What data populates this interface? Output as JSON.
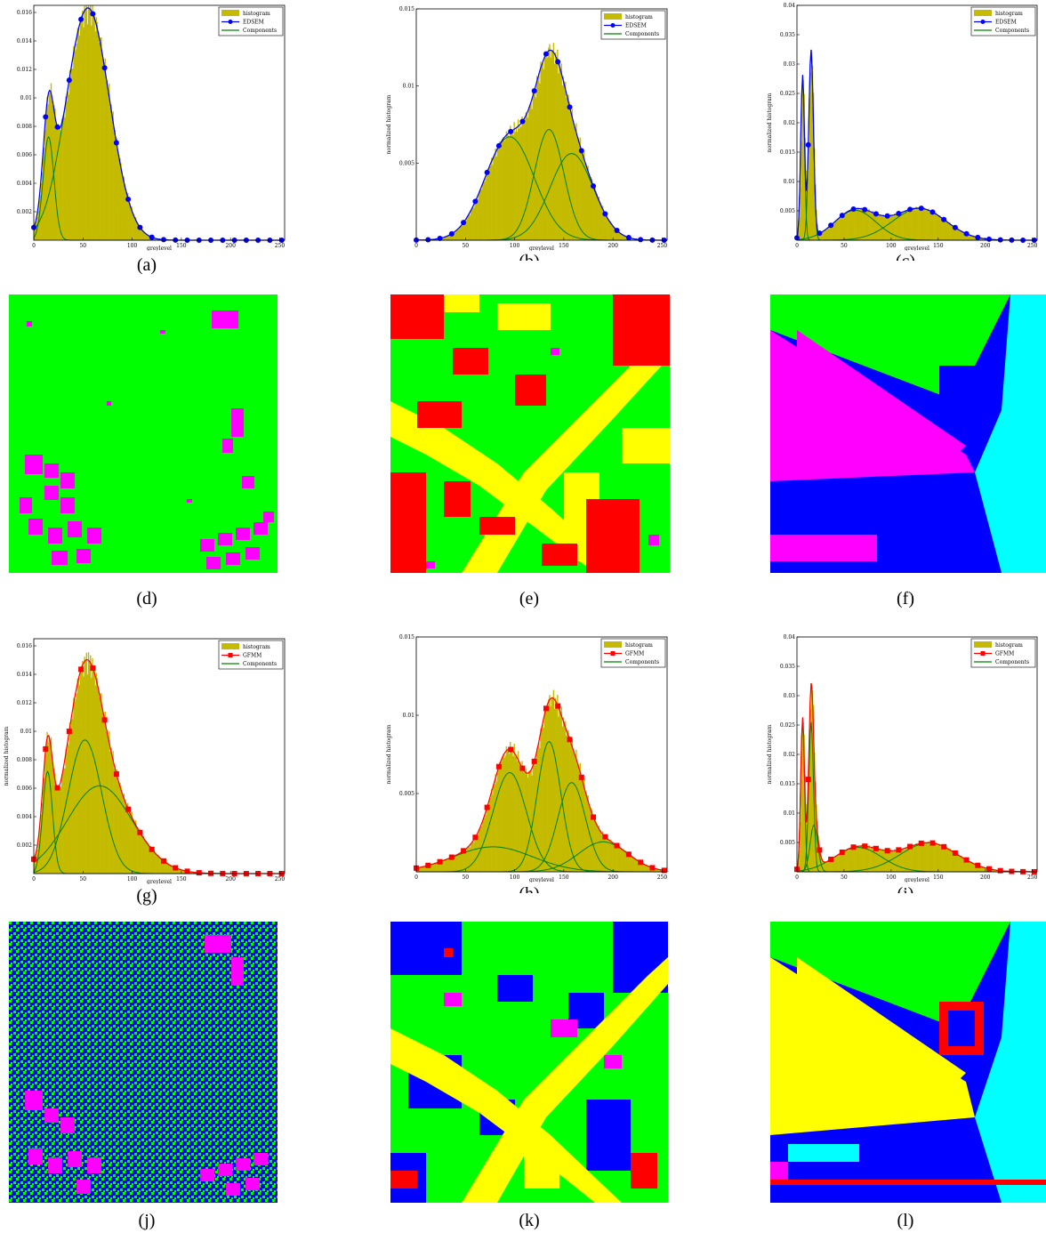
{
  "colors": {
    "histogram": "#c4bb00",
    "edsem": "#0000ff",
    "gfmm": "#ff0000",
    "components": "#008000",
    "seg_green": "#00ff00",
    "seg_magenta": "#ff00ff",
    "seg_red": "#ff0000",
    "seg_yellow": "#ffff00",
    "seg_blue": "#0000ff",
    "seg_cyan": "#00ffff"
  },
  "captions": [
    "(a)",
    "(b)",
    "(c)",
    "(d)",
    "(e)",
    "(f)",
    "(g)",
    "(h)",
    "(i)",
    "(j)",
    "(k)",
    "(l)"
  ],
  "chart_data": [
    {
      "type": "area",
      "id": "a",
      "xlabel": "greylevel",
      "ylabel": "",
      "xlim": [
        0,
        255
      ],
      "ylim": [
        0,
        0.0165
      ],
      "xticks": [
        "0",
        "50",
        "100",
        "150",
        "200",
        "250"
      ],
      "yticks": [
        "0.002",
        "0.004",
        "0.006",
        "0.008",
        "0.01",
        "0.012",
        "0.014",
        "0.016"
      ],
      "legend": [
        "histogram",
        "EDSEM",
        "Components"
      ],
      "model": "EDSEM",
      "components": [
        {
          "mu": 15,
          "sigma": 5.5,
          "weight": 0.1
        },
        {
          "mu": 55,
          "sigma": 22,
          "weight": 0.9
        }
      ]
    },
    {
      "type": "area",
      "id": "b",
      "xlabel": "greylevel",
      "ylabel": "normalized histogram",
      "xlim": [
        0,
        255
      ],
      "ylim": [
        0,
        0.015
      ],
      "xticks": [
        "0",
        "50",
        "100",
        "150",
        "200",
        "250"
      ],
      "yticks": [
        "0.005",
        "0.01",
        "0.015"
      ],
      "legend": [
        "histogram",
        "EDSEM",
        "Components"
      ],
      "model": "EDSEM",
      "components": [
        {
          "mu": 95,
          "sigma": 25,
          "weight": 0.42
        },
        {
          "mu": 135,
          "sigma": 15,
          "weight": 0.27
        },
        {
          "mu": 158,
          "sigma": 22,
          "weight": 0.31
        }
      ]
    },
    {
      "type": "area",
      "id": "c",
      "xlabel": "greylevel",
      "ylabel": "normalized histogram",
      "xlim": [
        0,
        255
      ],
      "ylim": [
        0,
        0.04
      ],
      "xticks": [
        "0",
        "50",
        "100",
        "150",
        "200",
        "250"
      ],
      "yticks": [
        "0.005",
        "0.01",
        "0.015",
        "0.02",
        "0.025",
        "0.03",
        "0.035",
        "0.04"
      ],
      "legend": [
        "histogram",
        "EDSEM",
        "Components"
      ],
      "model": "EDSEM",
      "components": [
        {
          "mu": 6,
          "sigma": 2,
          "weight": 0.14
        },
        {
          "mu": 15,
          "sigma": 2.5,
          "weight": 0.2
        },
        {
          "mu": 62,
          "sigma": 22,
          "weight": 0.28
        },
        {
          "mu": 130,
          "sigma": 28,
          "weight": 0.38
        }
      ]
    },
    {
      "type": "area",
      "id": "g",
      "xlabel": "greylevel",
      "ylabel": "normalized histogram",
      "xlim": [
        0,
        255
      ],
      "ylim": [
        0,
        0.0165
      ],
      "xticks": [
        "0",
        "50",
        "100",
        "150",
        "200",
        "250"
      ],
      "yticks": [
        "0.002",
        "0.004",
        "0.006",
        "0.008",
        "0.01",
        "0.012",
        "0.014",
        "0.016"
      ],
      "legend": [
        "histogram",
        "GFMM",
        "Components"
      ],
      "model": "GFMM",
      "components": [
        {
          "mu": 14,
          "sigma": 5,
          "weight": 0.09
        },
        {
          "mu": 52,
          "sigma": 17,
          "weight": 0.4
        },
        {
          "mu": 67,
          "sigma": 33,
          "weight": 0.51
        }
      ]
    },
    {
      "type": "area",
      "id": "h",
      "xlabel": "greylevel",
      "ylabel": "normalized histogram",
      "xlim": [
        0,
        255
      ],
      "ylim": [
        0,
        0.015
      ],
      "xticks": [
        "0",
        "50",
        "100",
        "150",
        "200",
        "250"
      ],
      "yticks": [
        "0.005",
        "0.01",
        "0.015"
      ],
      "legend": [
        "histogram",
        "GFMM",
        "Components"
      ],
      "model": "GFMM",
      "components": [
        {
          "mu": 78,
          "sigma": 40,
          "weight": 0.16
        },
        {
          "mu": 95,
          "sigma": 17,
          "weight": 0.27
        },
        {
          "mu": 135,
          "sigma": 12,
          "weight": 0.25
        },
        {
          "mu": 158,
          "sigma": 14,
          "weight": 0.2
        },
        {
          "mu": 190,
          "sigma": 25,
          "weight": 0.12
        }
      ]
    },
    {
      "type": "area",
      "id": "i",
      "xlabel": "greylevel",
      "ylabel": "normalized histogram",
      "xlim": [
        0,
        255
      ],
      "ylim": [
        0,
        0.04
      ],
      "xticks": [
        "0",
        "50",
        "100",
        "150",
        "200",
        "250"
      ],
      "yticks": [
        "0.005",
        "0.01",
        "0.015",
        "0.02",
        "0.025",
        "0.03",
        "0.035",
        "0.04"
      ],
      "legend": [
        "histogram",
        "GFMM",
        "Components"
      ],
      "model": "GFMM",
      "components": [
        {
          "mu": 6,
          "sigma": 2,
          "weight": 0.13
        },
        {
          "mu": 15,
          "sigma": 2.5,
          "weight": 0.16
        },
        {
          "mu": 18,
          "sigma": 4,
          "weight": 0.08
        },
        {
          "mu": 65,
          "sigma": 25,
          "weight": 0.26
        },
        {
          "mu": 140,
          "sigma": 30,
          "weight": 0.37
        }
      ]
    }
  ]
}
